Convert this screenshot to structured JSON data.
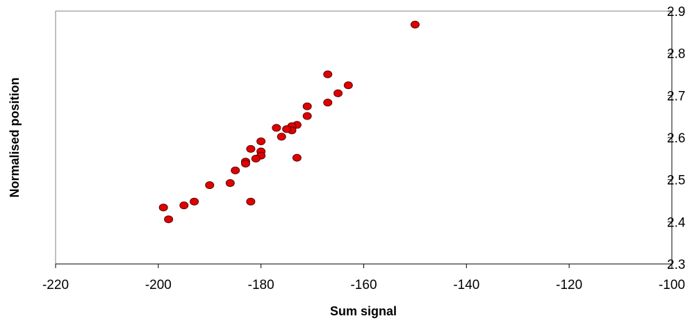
{
  "chart_data": {
    "type": "scatter",
    "title": "",
    "xlabel": "Sum signal",
    "ylabel": "Normalised position",
    "xlim": [
      -220,
      -100
    ],
    "ylim": [
      2.3,
      2.9
    ],
    "x_ticks": [
      -220,
      -200,
      -180,
      -160,
      -140,
      -120,
      -100
    ],
    "x_tick_labels": [
      "-220",
      "-200",
      "-180",
      "-160",
      "-140",
      "-120",
      "-100"
    ],
    "y_ticks": [
      2.3,
      2.4,
      2.5,
      2.6,
      2.7,
      2.8,
      2.9
    ],
    "y_tick_labels": [
      "2.3",
      "2.4",
      "2.5",
      "2.6",
      "2.7",
      "2.8",
      "2.9"
    ],
    "grid": false,
    "legend": "none",
    "point_color": "#e00000",
    "series": [
      {
        "x": [
          -150,
          -167,
          -163,
          -165,
          -167,
          -171,
          -171,
          -173,
          -174,
          -174,
          -175,
          -177,
          -176,
          -180,
          -180,
          -180,
          -182,
          -181,
          -183,
          -183,
          -185,
          -186,
          -190,
          -193,
          -195,
          -199,
          -198,
          -182,
          -173
        ],
        "y": [
          2.868,
          2.75,
          2.724,
          2.705,
          2.683,
          2.674,
          2.651,
          2.63,
          2.627,
          2.617,
          2.62,
          2.623,
          2.602,
          2.591,
          2.567,
          2.557,
          2.573,
          2.55,
          2.543,
          2.538,
          2.522,
          2.492,
          2.487,
          2.448,
          2.439,
          2.434,
          2.406,
          2.448,
          2.552
        ]
      }
    ]
  }
}
